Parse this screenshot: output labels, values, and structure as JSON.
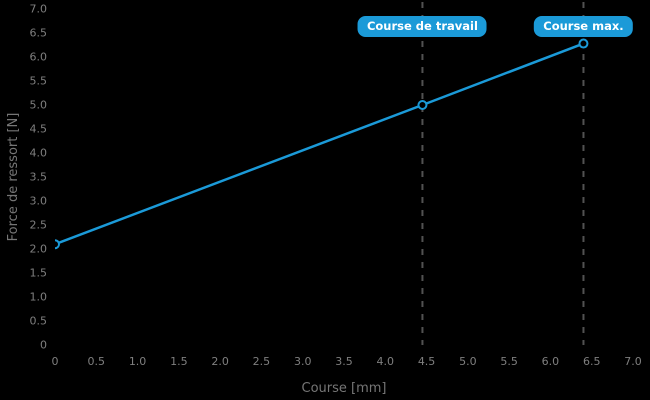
{
  "chart_data": {
    "type": "line",
    "xlabel": "Course [mm]",
    "ylabel": "Force de ressort [N]",
    "xlim": [
      0,
      7
    ],
    "ylim": [
      0,
      7
    ],
    "grid": "off",
    "legend": "none",
    "x_ticks": [
      0,
      0.5,
      1.0,
      1.5,
      2.0,
      2.5,
      3.0,
      3.5,
      4.0,
      4.5,
      5.0,
      5.5,
      6.0,
      6.5,
      7.0
    ],
    "x_tick_labels": [
      "0",
      "0.5",
      "1.0",
      "1.5",
      "2.0",
      "2.5",
      "3.0",
      "3.5",
      "4.0",
      "4.5",
      "5.0",
      "5.5",
      "6.0",
      "6.5",
      "7.0"
    ],
    "y_ticks": [
      0,
      0.5,
      1.0,
      1.5,
      2.0,
      2.5,
      3.0,
      3.5,
      4.0,
      4.5,
      5.0,
      5.5,
      6.0,
      6.5,
      7.0
    ],
    "y_tick_labels": [
      "0",
      "0.5",
      "1.0",
      "1.5",
      "2.0",
      "2.5",
      "3.0",
      "3.5",
      "4.0",
      "4.5",
      "5.0",
      "5.5",
      "6.0",
      "6.5",
      "7.0"
    ],
    "series": [
      {
        "name": "force-de-ressort",
        "marker": "open-circle",
        "points": [
          [
            0,
            2.1
          ],
          [
            4.45,
            5.0
          ],
          [
            6.4,
            6.28
          ]
        ]
      }
    ],
    "annotations": [
      {
        "label": "Course de travail",
        "x": 4.45,
        "style": "dashed-vline-with-badge"
      },
      {
        "label": "Course max.",
        "x": 6.4,
        "style": "dashed-vline-with-badge"
      }
    ]
  },
  "colors": {
    "background": "#000000",
    "accent_blue": "#1b9ad8",
    "tick_text": "#7f7f7f",
    "axis_label_text": "#767676",
    "dashed_line": "#525252",
    "marker_fill": "#000000",
    "badge_text": "#ffffff"
  }
}
